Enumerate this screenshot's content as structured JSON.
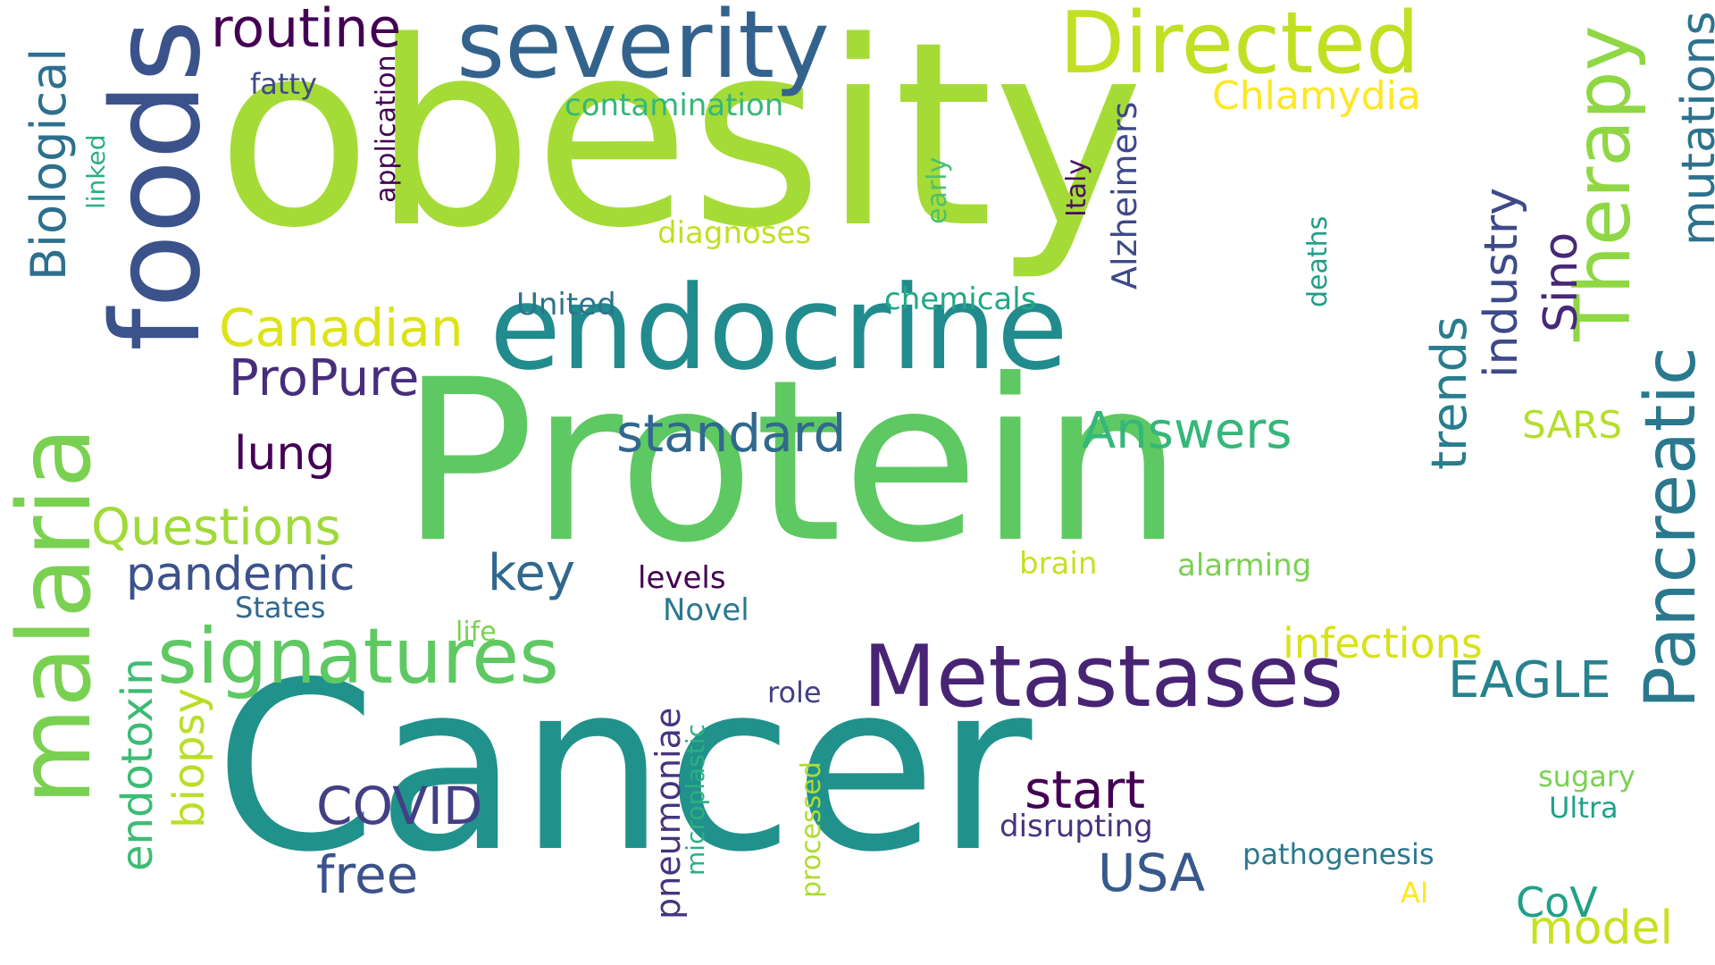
{
  "background_color": "#ffffff",
  "words": [
    {
      "key": "obesity",
      "text": "obesity",
      "color": "#a5db36",
      "orientation": "horizontal"
    },
    {
      "key": "protein",
      "text": "Protein",
      "color": "#5ec962",
      "orientation": "horizontal"
    },
    {
      "key": "cancer",
      "text": "Cancer",
      "color": "#21918c",
      "orientation": "horizontal"
    },
    {
      "key": "endocrine",
      "text": "endocrine",
      "color": "#228b8d",
      "orientation": "horizontal"
    },
    {
      "key": "severity",
      "text": "severity",
      "color": "#33638d",
      "orientation": "horizontal"
    },
    {
      "key": "foods",
      "text": "foods",
      "color": "#3b528b",
      "orientation": "vertical"
    },
    {
      "key": "malaria",
      "text": "malaria",
      "color": "#7ad151",
      "orientation": "vertical"
    },
    {
      "key": "pancreatic",
      "text": "Pancreatic",
      "color": "#2a788e",
      "orientation": "vertical"
    },
    {
      "key": "directed",
      "text": "Directed",
      "color": "#c2df23",
      "orientation": "horizontal"
    },
    {
      "key": "therapy",
      "text": "Therapy",
      "color": "#8fd744",
      "orientation": "vertical"
    },
    {
      "key": "metastases",
      "text": "Metastases",
      "color": "#482475",
      "orientation": "horizontal"
    },
    {
      "key": "signatures",
      "text": "signatures",
      "color": "#5ec962",
      "orientation": "horizontal"
    },
    {
      "key": "routine",
      "text": "routine",
      "color": "#440154",
      "orientation": "horizontal"
    },
    {
      "key": "biological",
      "text": "Biological",
      "color": "#2d708e",
      "orientation": "vertical"
    },
    {
      "key": "mutations",
      "text": "mutations",
      "color": "#2c728e",
      "orientation": "vertical"
    },
    {
      "key": "canadian",
      "text": "Canadian",
      "color": "#dde318",
      "orientation": "horizontal"
    },
    {
      "key": "propure",
      "text": "ProPure",
      "color": "#472d7b",
      "orientation": "horizontal"
    },
    {
      "key": "standard",
      "text": "standard",
      "color": "#31688e",
      "orientation": "horizontal"
    },
    {
      "key": "answers",
      "text": "Answers",
      "color": "#35b779",
      "orientation": "horizontal"
    },
    {
      "key": "questions",
      "text": "Questions",
      "color": "#a0da39",
      "orientation": "horizontal"
    },
    {
      "key": "pandemic",
      "text": "pandemic",
      "color": "#3b528b",
      "orientation": "horizontal"
    },
    {
      "key": "lung",
      "text": "lung",
      "color": "#440154",
      "orientation": "horizontal"
    },
    {
      "key": "key",
      "text": "key",
      "color": "#31688e",
      "orientation": "horizontal"
    },
    {
      "key": "industry",
      "text": "industry",
      "color": "#3e4989",
      "orientation": "vertical"
    },
    {
      "key": "sino",
      "text": "Sino",
      "color": "#482878",
      "orientation": "vertical"
    },
    {
      "key": "trends",
      "text": "trends",
      "color": "#287d8e",
      "orientation": "vertical"
    },
    {
      "key": "alzheimers",
      "text": "Alzheimers",
      "color": "#3e4989",
      "orientation": "vertical"
    },
    {
      "key": "eagle",
      "text": "EAGLE",
      "color": "#26828e",
      "orientation": "horizontal"
    },
    {
      "key": "covid",
      "text": "COVID",
      "color": "#433e85",
      "orientation": "horizontal"
    },
    {
      "key": "free",
      "text": "free",
      "color": "#3b528b",
      "orientation": "horizontal"
    },
    {
      "key": "start",
      "text": "start",
      "color": "#440154",
      "orientation": "horizontal"
    },
    {
      "key": "usa",
      "text": "USA",
      "color": "#38598c",
      "orientation": "horizontal"
    },
    {
      "key": "model",
      "text": "model",
      "color": "#c8e020",
      "orientation": "horizontal"
    },
    {
      "key": "endotoxin",
      "text": "endotoxin",
      "color": "#3dbc74",
      "orientation": "vertical"
    },
    {
      "key": "biopsy",
      "text": "biopsy",
      "color": "#bade28",
      "orientation": "vertical"
    },
    {
      "key": "pneumoniae",
      "text": "pneumoniae",
      "color": "#46337f",
      "orientation": "vertical"
    },
    {
      "key": "infections",
      "text": "infections",
      "color": "#d8e219",
      "orientation": "horizontal"
    },
    {
      "key": "chlamydia",
      "text": "Chlamydia",
      "color": "#fde725",
      "orientation": "horizontal"
    },
    {
      "key": "sars",
      "text": "SARS",
      "color": "#b5de2b",
      "orientation": "horizontal"
    },
    {
      "key": "cov",
      "text": "CoV",
      "color": "#1fa188",
      "orientation": "horizontal"
    },
    {
      "key": "contamination",
      "text": "contamination",
      "color": "#35b779",
      "orientation": "horizontal"
    },
    {
      "key": "diagnoses",
      "text": "diagnoses",
      "color": "#c2df23",
      "orientation": "horizontal"
    },
    {
      "key": "united",
      "text": "United",
      "color": "#2c728e",
      "orientation": "horizontal"
    },
    {
      "key": "chemicals",
      "text": "chemicals",
      "color": "#22a884",
      "orientation": "horizontal"
    },
    {
      "key": "fatty",
      "text": "fatty",
      "color": "#3e4989",
      "orientation": "horizontal"
    },
    {
      "key": "application",
      "text": "application",
      "color": "#440154",
      "orientation": "vertical"
    },
    {
      "key": "linked",
      "text": "linked",
      "color": "#2ab07f",
      "orientation": "vertical"
    },
    {
      "key": "early",
      "text": "early",
      "color": "#4ac16d",
      "orientation": "vertical"
    },
    {
      "key": "italy",
      "text": "Italy",
      "color": "#471063",
      "orientation": "vertical"
    },
    {
      "key": "deaths",
      "text": "deaths",
      "color": "#1f9e89",
      "orientation": "vertical"
    },
    {
      "key": "levels",
      "text": "levels",
      "color": "#440154",
      "orientation": "horizontal"
    },
    {
      "key": "novel",
      "text": "Novel",
      "color": "#2a788e",
      "orientation": "horizontal"
    },
    {
      "key": "states",
      "text": "States",
      "color": "#31688e",
      "orientation": "horizontal"
    },
    {
      "key": "life",
      "text": "life",
      "color": "#7ad151",
      "orientation": "horizontal"
    },
    {
      "key": "brain",
      "text": "brain",
      "color": "#c8e020",
      "orientation": "horizontal"
    },
    {
      "key": "alarming",
      "text": "alarming",
      "color": "#7ad151",
      "orientation": "horizontal"
    },
    {
      "key": "role",
      "text": "role",
      "color": "#433e85",
      "orientation": "horizontal"
    },
    {
      "key": "microplastic",
      "text": "microplastic",
      "color": "#2ab07f",
      "orientation": "vertical"
    },
    {
      "key": "processed",
      "text": "processed",
      "color": "#addc30",
      "orientation": "vertical"
    },
    {
      "key": "disrupting",
      "text": "disrupting",
      "color": "#46337f",
      "orientation": "horizontal"
    },
    {
      "key": "pathogenesis",
      "text": "pathogenesis",
      "color": "#2a788e",
      "orientation": "horizontal"
    },
    {
      "key": "sugary",
      "text": "sugary",
      "color": "#7ad151",
      "orientation": "horizontal"
    },
    {
      "key": "ultra",
      "text": "Ultra",
      "color": "#1fa188",
      "orientation": "horizontal"
    },
    {
      "key": "ai",
      "text": "AI",
      "color": "#fde725",
      "orientation": "horizontal"
    }
  ]
}
